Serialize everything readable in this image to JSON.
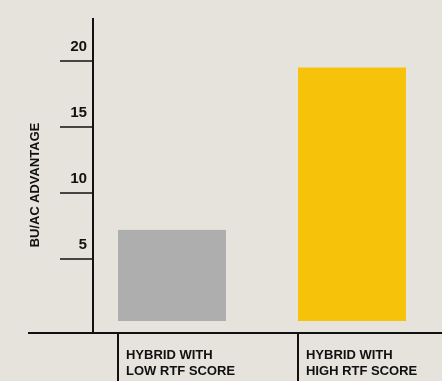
{
  "chart_data": {
    "type": "bar",
    "ylabel": "BU/AC ADVANTAGE",
    "yticks": [
      5,
      10,
      15,
      20
    ],
    "ylim": [
      0,
      22
    ],
    "categories": [
      [
        "HYBRID WITH",
        "LOW RTF SCORE"
      ],
      [
        "HYBRID WITH",
        "HIGH RTF SCORE"
      ]
    ],
    "values": [
      6.9,
      19.2
    ],
    "colors": [
      "#aeaeae",
      "#f7c20a"
    ],
    "grid": false,
    "legend": "none"
  }
}
